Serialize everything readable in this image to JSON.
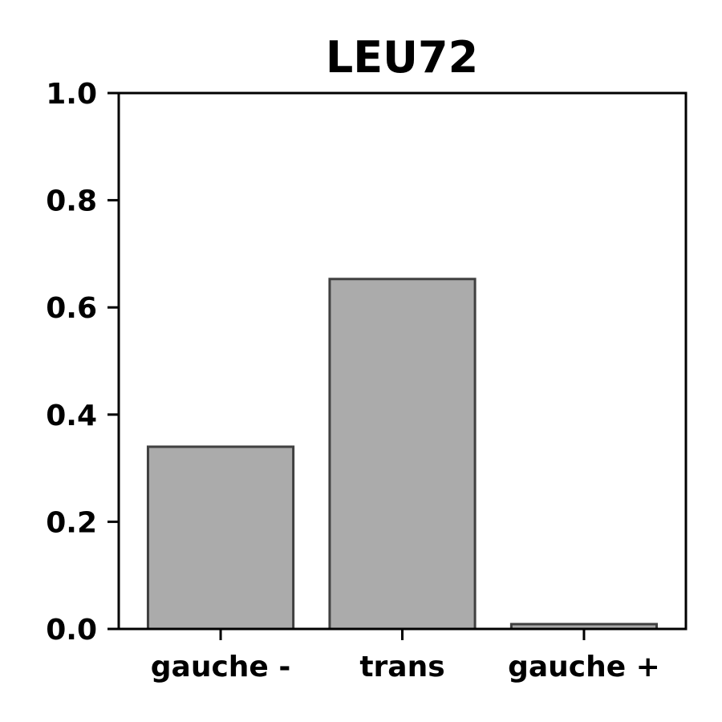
{
  "chart_data": {
    "type": "bar",
    "title": "LEU72",
    "xlabel": "",
    "ylabel": "",
    "categories": [
      "gauche -",
      "trans",
      "gauche +"
    ],
    "values": [
      0.34,
      0.653,
      0.009
    ],
    "ylim": [
      0,
      1.0
    ],
    "yticks": [
      0.0,
      0.2,
      0.4,
      0.6,
      0.8,
      1.0
    ],
    "ytick_labels": [
      "0.0",
      "0.2",
      "0.4",
      "0.6",
      "0.8",
      "1.0"
    ],
    "bar_color": "#ababab",
    "bar_edge_color": "#404040",
    "grid": false,
    "legend": "none"
  }
}
